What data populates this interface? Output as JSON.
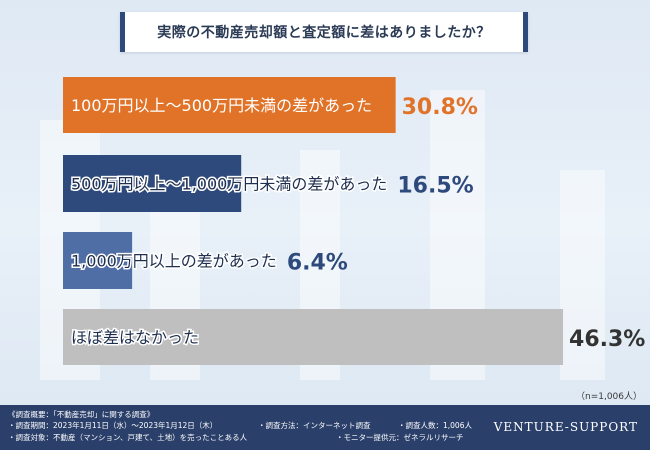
{
  "title": "実際の不動産売却額と査定額に差はありましたか？",
  "chart_data": {
    "type": "bar",
    "orientation": "horizontal",
    "categories": [
      "100万円以上～500万円未満の差があった",
      "500万円以上～1,000万円未満の差があった",
      "1,000万円以上の差があった",
      "ほぼ差はなかった"
    ],
    "values": [
      30.8,
      16.5,
      6.4,
      46.3
    ],
    "value_labels": [
      "30.8%",
      "16.5%",
      "6.4%",
      "46.3%"
    ],
    "colors": [
      "#e07328",
      "#2e4a7c",
      "#4f6ea6",
      "#bfbfbf"
    ],
    "label_colors": [
      "#ffffff",
      "#1f2f4f",
      "#1f2f4f",
      "#1f2f4f"
    ],
    "value_colors": [
      "#e07328",
      "#2e4a7c",
      "#2e4a7c",
      "#333333"
    ],
    "xlim": [
      0,
      50
    ]
  },
  "sample_note": "（n=1,006人）",
  "footer": {
    "survey_heading": "《調査概要：「不動産売却」に関する調査》",
    "period": "・調査期間：2023年1月11日（水）～2023年1月12日（木）",
    "method": "・調査方法：インターネット調査",
    "count": "・調査人数：1,006人",
    "target": "・調査対象：不動産（マンション、戸建て、土地）を売ったことある人",
    "provider": "・モニター提供元：ゼネラルリサーチ",
    "brand": "VENTURE-SUPPORT"
  }
}
